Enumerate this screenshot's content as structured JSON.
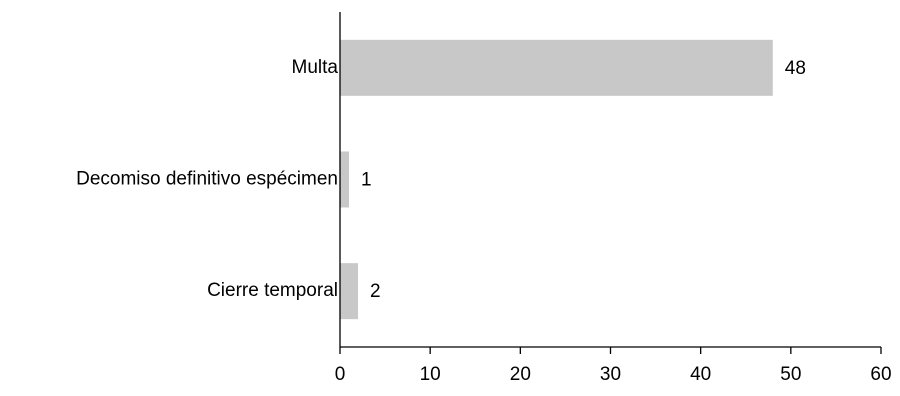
{
  "chart_data": {
    "type": "bar",
    "orientation": "horizontal",
    "categories": [
      "Multa",
      "Decomiso definitivo espécimen",
      "Cierre temporal"
    ],
    "values": [
      48,
      1,
      2
    ],
    "data_labels": [
      "48",
      "1",
      "2"
    ],
    "title": "",
    "xlabel": "",
    "ylabel": "",
    "xlim": [
      0,
      60
    ],
    "x_ticks": [
      0,
      10,
      20,
      30,
      40,
      50,
      60
    ],
    "x_tick_labels": [
      "0",
      "10",
      "20",
      "30",
      "40",
      "50",
      "60"
    ],
    "grid": false,
    "legend": "none",
    "colors": {
      "bar": "#c8c8c8",
      "axis": "#000000",
      "text": "#000000"
    }
  }
}
